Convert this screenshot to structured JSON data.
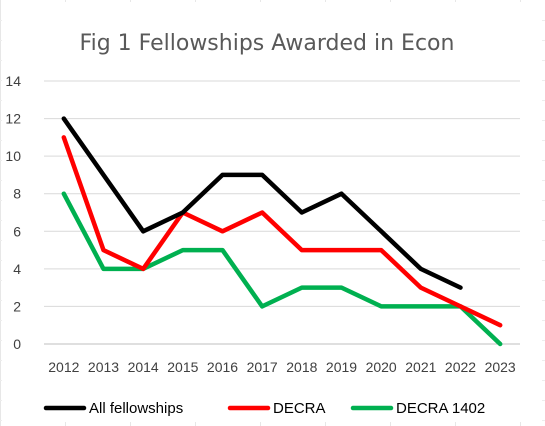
{
  "chart_data": {
    "type": "line",
    "title": "Fig 1 Fellowships Awarded in Econ",
    "xlabel": "",
    "ylabel": "",
    "categories": [
      "2012",
      "2013",
      "2014",
      "2015",
      "2016",
      "2017",
      "2018",
      "2019",
      "2020",
      "2021",
      "2022",
      "2023"
    ],
    "ylim": [
      0,
      14
    ],
    "yticks": [
      "0",
      "2",
      "4",
      "6",
      "8",
      "10",
      "12",
      "14"
    ],
    "grid": true,
    "legend_position": "bottom",
    "series": [
      {
        "name": "All fellowships",
        "color": "#000000",
        "values": [
          12,
          9,
          6,
          7,
          9,
          9,
          7,
          8,
          6,
          4,
          3,
          null
        ]
      },
      {
        "name": "DECRA",
        "color": "#ff0000",
        "values": [
          11,
          5,
          4,
          7,
          6,
          7,
          5,
          5,
          5,
          3,
          2,
          1
        ]
      },
      {
        "name": "DECRA 1402",
        "color": "#00b050",
        "values": [
          8,
          4,
          4,
          5,
          5,
          2,
          3,
          3,
          2,
          2,
          2,
          0
        ]
      }
    ]
  }
}
